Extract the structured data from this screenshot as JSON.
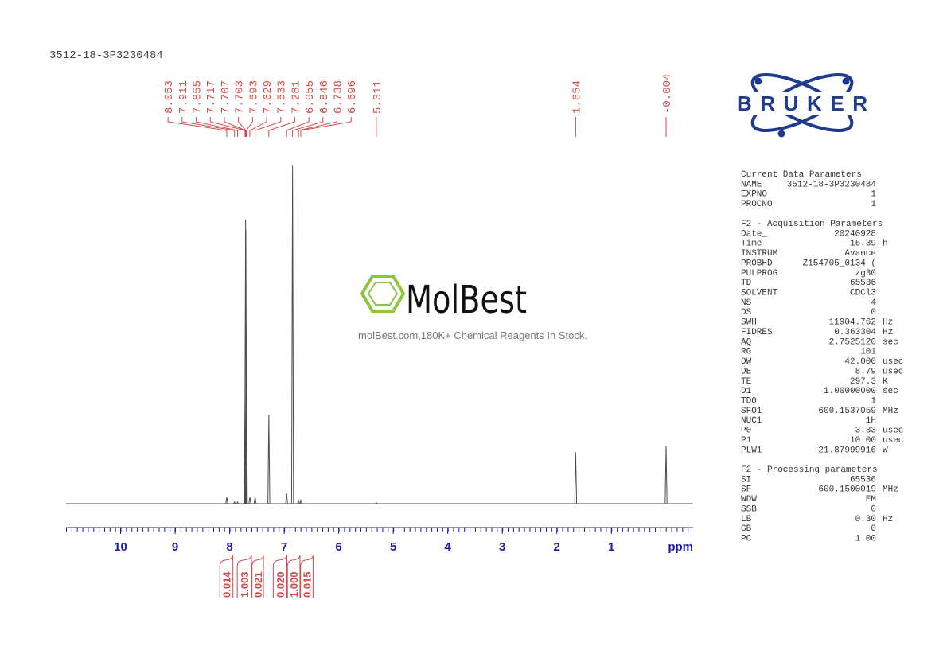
{
  "header": {
    "title": "3512-18-3P3230484"
  },
  "logo": "BRUKER",
  "watermark": {
    "name": "MolBest",
    "tagline": "molBest.com,180K+ Chemical Reagents In Stock."
  },
  "chart_data": {
    "type": "nmr",
    "xlabel": "ppm",
    "xlim": [
      11.0,
      -0.5
    ],
    "xticks": [
      10,
      9,
      8,
      7,
      6,
      5,
      4,
      3,
      2,
      1
    ],
    "ylim": [
      0,
      100
    ],
    "color": "#4d4d4d",
    "label_color": "#d24a4a",
    "axis_color": "#1a1aa6",
    "peaks": {
      "x": [
        8.053,
        7.911,
        7.855,
        7.717,
        7.707,
        7.703,
        7.693,
        7.629,
        7.533,
        7.281,
        6.955,
        6.846,
        6.738,
        6.696,
        5.311,
        1.654,
        -0.004
      ],
      "values": [
        2,
        0.5,
        0.5,
        30,
        83,
        80,
        40,
        2,
        2,
        26,
        3,
        99,
        1,
        1,
        0.3,
        15,
        17
      ]
    },
    "integrals": {
      "ranges": [
        [
          8.18,
          7.94
        ],
        [
          7.86,
          7.6
        ],
        [
          7.59,
          7.38
        ],
        [
          7.2,
          6.95
        ],
        [
          6.94,
          6.71
        ],
        [
          6.7,
          6.47
        ]
      ],
      "values": [
        0.014,
        1.003,
        0.021,
        0.02,
        1,
        0.015
      ],
      "value_labels": [
        "0.014",
        "1.003",
        "0.021",
        "0.020",
        "1.000",
        "0.015"
      ]
    }
  },
  "parameters": [
    {
      "heading": "Current Data Parameters",
      "rows": [
        [
          "NAME",
          "3512-18-3P3230484"
        ],
        [
          "EXPNO",
          "1"
        ],
        [
          "PROCNO",
          "1"
        ]
      ]
    },
    {
      "heading": "F2 - Acquisition Parameters",
      "rows": [
        [
          "Date_",
          "20240928"
        ],
        [
          "Time",
          "16.39",
          "h"
        ],
        [
          "INSTRUM",
          "Avance"
        ],
        [
          "PROBHD",
          "Z154705_0134 ("
        ],
        [
          "PULPROG",
          "zg30"
        ],
        [
          "TD",
          "65536"
        ],
        [
          "SOLVENT",
          "CDCl3"
        ],
        [
          "NS",
          "4"
        ],
        [
          "DS",
          "0"
        ],
        [
          "SWH",
          "11904.762",
          "Hz"
        ],
        [
          "FIDRES",
          "0.363304",
          "Hz"
        ],
        [
          "AQ",
          "2.7525120",
          "sec"
        ],
        [
          "RG",
          "101"
        ],
        [
          "DW",
          "42.000",
          "usec"
        ],
        [
          "DE",
          "8.79",
          "usec"
        ],
        [
          "TE",
          "297.3",
          "K"
        ],
        [
          "D1",
          "1.00000000",
          "sec"
        ],
        [
          "TD0",
          "1"
        ],
        [
          "SFO1",
          "600.1537059",
          "MHz"
        ],
        [
          "NUC1",
          "1H"
        ],
        [
          "P0",
          "3.33",
          "usec"
        ],
        [
          "P1",
          "10.00",
          "usec"
        ],
        [
          "PLW1",
          "21.87999916",
          "W"
        ]
      ]
    },
    {
      "heading": "F2 - Processing parameters",
      "rows": [
        [
          "SI",
          "65536"
        ],
        [
          "SF",
          "600.1500019",
          "MHz"
        ],
        [
          "WDW",
          "EM"
        ],
        [
          "SSB",
          "0"
        ],
        [
          "LB",
          "0.30",
          "Hz"
        ],
        [
          "GB",
          "0"
        ],
        [
          "PC",
          "1.00"
        ]
      ]
    }
  ]
}
